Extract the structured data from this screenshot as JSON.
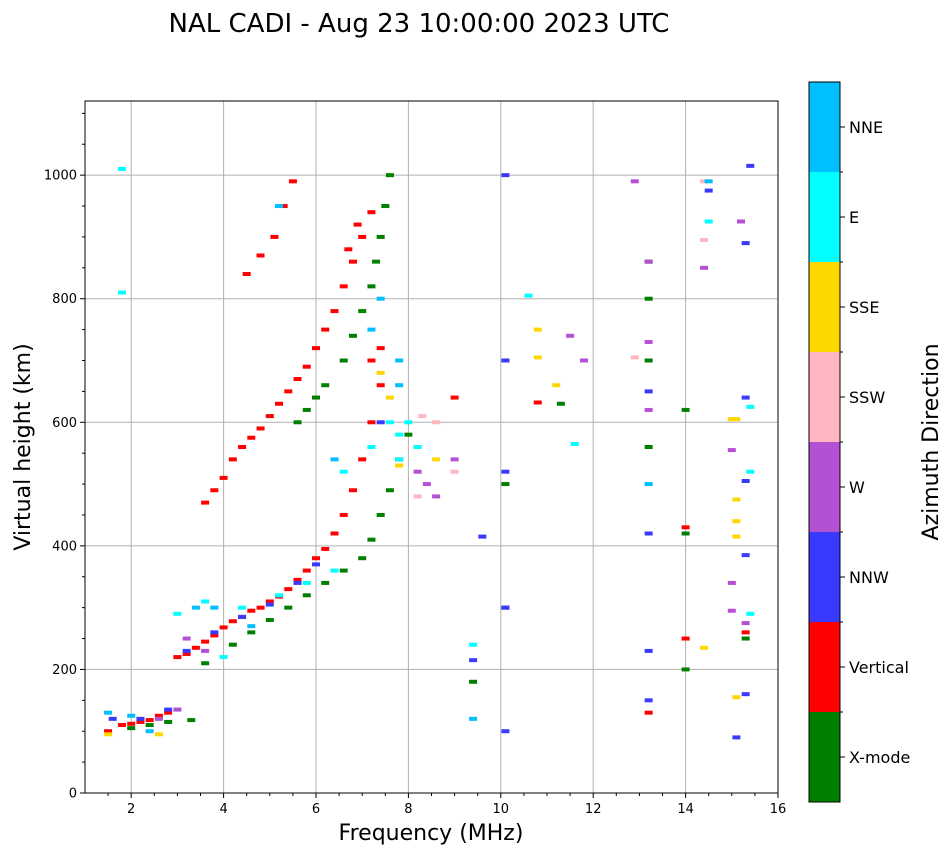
{
  "chart_data": {
    "type": "scatter",
    "title": "NAL CADI - Aug 23 10:00:00 2023 UTC",
    "xlabel": "Frequency (MHz)",
    "ylabel": "Virtual height (km)",
    "xlim": [
      1,
      16
    ],
    "ylim": [
      0,
      1120
    ],
    "xticks": [
      "2",
      "4",
      "6",
      "8",
      "10",
      "12",
      "14",
      "16"
    ],
    "yticks": [
      "0",
      "200",
      "400",
      "600",
      "800",
      "1000"
    ],
    "grid": true,
    "colorbar": {
      "label": "Azimuth Direction",
      "categories": [
        "X-mode",
        "Vertical",
        "NNW",
        "W",
        "SSW",
        "SSE",
        "E",
        "NNE"
      ],
      "colors": [
        "#008000",
        "#ff0000",
        "#3a3aff",
        "#b450d2",
        "#ffb6c1",
        "#ffd700",
        "#00ffff",
        "#00bfff"
      ]
    },
    "series": [
      {
        "name": "Vertical",
        "color": "#ff0000",
        "points": [
          [
            1.5,
            100
          ],
          [
            1.8,
            110
          ],
          [
            2.0,
            112
          ],
          [
            2.2,
            115
          ],
          [
            2.4,
            118
          ],
          [
            2.6,
            125
          ],
          [
            2.8,
            130
          ],
          [
            3.0,
            220
          ],
          [
            3.2,
            225
          ],
          [
            3.4,
            235
          ],
          [
            3.6,
            245
          ],
          [
            3.8,
            255
          ],
          [
            4.0,
            268
          ],
          [
            4.2,
            278
          ],
          [
            4.4,
            285
          ],
          [
            4.6,
            295
          ],
          [
            4.8,
            300
          ],
          [
            5.0,
            310
          ],
          [
            5.2,
            318
          ],
          [
            5.4,
            330
          ],
          [
            5.6,
            345
          ],
          [
            5.8,
            360
          ],
          [
            6.0,
            380
          ],
          [
            6.2,
            395
          ],
          [
            6.4,
            420
          ],
          [
            6.6,
            450
          ],
          [
            6.8,
            490
          ],
          [
            7.0,
            540
          ],
          [
            7.2,
            600
          ],
          [
            7.4,
            660
          ],
          [
            3.6,
            470
          ],
          [
            3.8,
            490
          ],
          [
            4.0,
            510
          ],
          [
            4.2,
            540
          ],
          [
            4.4,
            560
          ],
          [
            4.6,
            575
          ],
          [
            4.8,
            590
          ],
          [
            5.0,
            610
          ],
          [
            5.2,
            630
          ],
          [
            5.4,
            650
          ],
          [
            5.6,
            670
          ],
          [
            5.8,
            690
          ],
          [
            6.0,
            720
          ],
          [
            6.2,
            750
          ],
          [
            6.4,
            780
          ],
          [
            6.6,
            820
          ],
          [
            6.8,
            860
          ],
          [
            7.0,
            900
          ],
          [
            7.2,
            940
          ],
          [
            4.5,
            840
          ],
          [
            4.8,
            870
          ],
          [
            5.1,
            900
          ],
          [
            5.3,
            950
          ],
          [
            5.5,
            990
          ],
          [
            6.7,
            880
          ],
          [
            6.9,
            920
          ],
          [
            7.2,
            700
          ],
          [
            7.4,
            720
          ],
          [
            9.0,
            640
          ],
          [
            10.8,
            632
          ],
          [
            13.2,
            130
          ],
          [
            14.0,
            250
          ],
          [
            14.0,
            430
          ],
          [
            15.3,
            260
          ]
        ]
      },
      {
        "name": "X-mode",
        "color": "#008000",
        "points": [
          [
            2.0,
            105
          ],
          [
            2.4,
            110
          ],
          [
            2.8,
            115
          ],
          [
            3.3,
            118
          ],
          [
            3.6,
            210
          ],
          [
            4.2,
            240
          ],
          [
            4.6,
            260
          ],
          [
            5.0,
            280
          ],
          [
            5.4,
            300
          ],
          [
            5.8,
            320
          ],
          [
            6.2,
            340
          ],
          [
            6.6,
            360
          ],
          [
            7.0,
            380
          ],
          [
            7.2,
            410
          ],
          [
            7.4,
            450
          ],
          [
            7.6,
            490
          ],
          [
            7.8,
            540
          ],
          [
            8.0,
            580
          ],
          [
            5.6,
            600
          ],
          [
            5.8,
            620
          ],
          [
            6.0,
            640
          ],
          [
            6.2,
            660
          ],
          [
            6.6,
            700
          ],
          [
            6.8,
            740
          ],
          [
            7.0,
            780
          ],
          [
            7.2,
            820
          ],
          [
            7.3,
            860
          ],
          [
            7.4,
            900
          ],
          [
            7.5,
            950
          ],
          [
            7.6,
            1000
          ],
          [
            9.4,
            180
          ],
          [
            10.1,
            300
          ],
          [
            10.1,
            500
          ],
          [
            10.1,
            700
          ],
          [
            11.3,
            630
          ],
          [
            13.2,
            860
          ],
          [
            13.2,
            700
          ],
          [
            13.2,
            560
          ],
          [
            13.2,
            800
          ],
          [
            14.0,
            200
          ],
          [
            14.0,
            420
          ],
          [
            14.0,
            620
          ],
          [
            15.3,
            250
          ]
        ]
      },
      {
        "name": "NNW",
        "color": "#3a3aff",
        "points": [
          [
            1.6,
            120
          ],
          [
            2.2,
            120
          ],
          [
            2.8,
            135
          ],
          [
            3.2,
            230
          ],
          [
            3.8,
            260
          ],
          [
            4.4,
            285
          ],
          [
            5.0,
            305
          ],
          [
            5.6,
            340
          ],
          [
            6.0,
            370
          ],
          [
            7.4,
            600
          ],
          [
            9.4,
            215
          ],
          [
            9.6,
            415
          ],
          [
            10.1,
            100
          ],
          [
            10.1,
            300
          ],
          [
            10.1,
            520
          ],
          [
            10.1,
            700
          ],
          [
            10.1,
            1000
          ],
          [
            13.2,
            150
          ],
          [
            13.2,
            230
          ],
          [
            13.2,
            420
          ],
          [
            13.2,
            650
          ],
          [
            14.5,
            975
          ],
          [
            15.1,
            90
          ],
          [
            15.3,
            160
          ],
          [
            15.3,
            385
          ],
          [
            15.3,
            505
          ],
          [
            15.3,
            640
          ],
          [
            15.3,
            890
          ],
          [
            15.4,
            1015
          ]
        ]
      },
      {
        "name": "W",
        "color": "#b450d2",
        "points": [
          [
            2.6,
            120
          ],
          [
            3.0,
            135
          ],
          [
            3.2,
            250
          ],
          [
            3.6,
            230
          ],
          [
            8.2,
            520
          ],
          [
            8.4,
            500
          ],
          [
            8.6,
            480
          ],
          [
            9.0,
            540
          ],
          [
            11.5,
            740
          ],
          [
            11.8,
            700
          ],
          [
            12.9,
            990
          ],
          [
            13.2,
            730
          ],
          [
            13.2,
            620
          ],
          [
            13.2,
            860
          ],
          [
            14.4,
            850
          ],
          [
            15.0,
            340
          ],
          [
            15.0,
            295
          ],
          [
            15.0,
            555
          ],
          [
            15.2,
            925
          ],
          [
            15.3,
            275
          ]
        ]
      },
      {
        "name": "SSW",
        "color": "#ffb6c1",
        "points": [
          [
            8.3,
            610
          ],
          [
            8.6,
            600
          ],
          [
            8.2,
            480
          ],
          [
            9.0,
            520
          ],
          [
            12.9,
            705
          ],
          [
            14.4,
            895
          ],
          [
            14.4,
            990
          ]
        ]
      },
      {
        "name": "SSE",
        "color": "#ffd700",
        "points": [
          [
            1.5,
            95
          ],
          [
            2.6,
            95
          ],
          [
            7.4,
            680
          ],
          [
            7.6,
            640
          ],
          [
            7.8,
            530
          ],
          [
            8.2,
            560
          ],
          [
            8.6,
            540
          ],
          [
            10.8,
            750
          ],
          [
            10.8,
            705
          ],
          [
            11.2,
            660
          ],
          [
            14.4,
            235
          ],
          [
            15.1,
            155
          ],
          [
            15.1,
            415
          ],
          [
            15.1,
            440
          ],
          [
            15.1,
            475
          ],
          [
            15.1,
            605
          ],
          [
            15.0,
            605
          ]
        ]
      },
      {
        "name": "E",
        "color": "#00ffff",
        "points": [
          [
            1.8,
            1010
          ],
          [
            1.8,
            810
          ],
          [
            3.0,
            290
          ],
          [
            3.6,
            310
          ],
          [
            4.0,
            220
          ],
          [
            4.4,
            300
          ],
          [
            5.2,
            320
          ],
          [
            5.8,
            340
          ],
          [
            6.4,
            360
          ],
          [
            6.6,
            520
          ],
          [
            7.2,
            560
          ],
          [
            7.6,
            600
          ],
          [
            7.8,
            580
          ],
          [
            7.8,
            540
          ],
          [
            8.0,
            600
          ],
          [
            8.2,
            560
          ],
          [
            9.4,
            240
          ],
          [
            10.6,
            805
          ],
          [
            11.6,
            565
          ],
          [
            14.5,
            925
          ],
          [
            15.4,
            520
          ],
          [
            15.4,
            625
          ],
          [
            15.4,
            290
          ]
        ]
      },
      {
        "name": "NNE",
        "color": "#00bfff",
        "points": [
          [
            1.5,
            130
          ],
          [
            2.0,
            125
          ],
          [
            2.4,
            100
          ],
          [
            3.4,
            300
          ],
          [
            3.8,
            300
          ],
          [
            4.6,
            270
          ],
          [
            5.2,
            950
          ],
          [
            6.4,
            540
          ],
          [
            7.2,
            750
          ],
          [
            7.4,
            800
          ],
          [
            7.8,
            700
          ],
          [
            7.8,
            660
          ],
          [
            9.4,
            120
          ],
          [
            13.2,
            500
          ],
          [
            14.5,
            990
          ]
        ]
      }
    ]
  }
}
